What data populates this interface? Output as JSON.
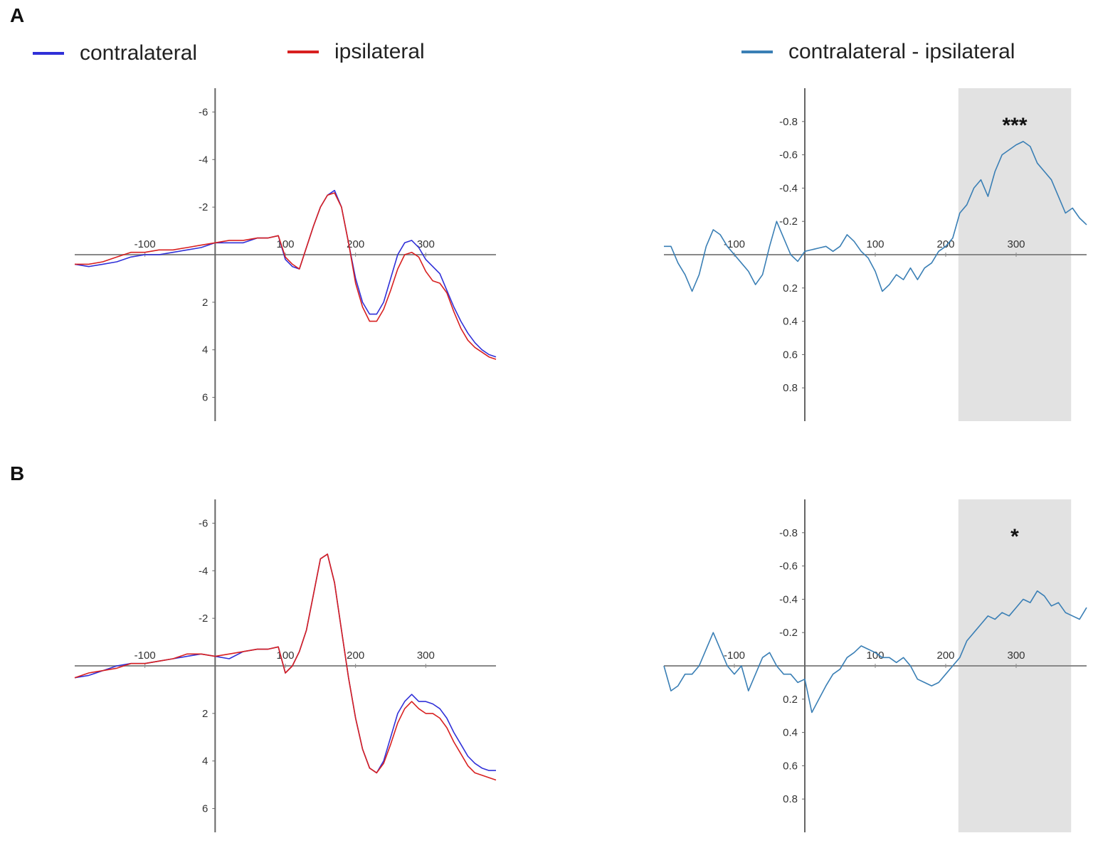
{
  "panels": {
    "a_label": "A",
    "b_label": "B"
  },
  "legend": {
    "items": [
      {
        "label": "contralateral",
        "color": "#3030d8"
      },
      {
        "label": "ipsilateral",
        "color": "#d82020"
      },
      {
        "label": "contralateral - ipsilateral",
        "color": "#3a7fb5"
      }
    ]
  },
  "chart_data": [
    {
      "panel": "A",
      "type": "line",
      "x_ticks": [
        -100,
        100,
        200,
        300
      ],
      "y_ticks": [
        -6,
        -4,
        -2,
        2,
        4,
        6
      ],
      "xlim": [
        -200,
        400
      ],
      "ylim": [
        -7,
        7
      ],
      "y_inverted": true,
      "series": [
        {
          "name": "contralateral",
          "color": "#3030d8",
          "x": [
            -200,
            -180,
            -160,
            -140,
            -120,
            -100,
            -80,
            -60,
            -40,
            -20,
            0,
            20,
            40,
            60,
            75,
            90,
            100,
            110,
            120,
            130,
            140,
            150,
            160,
            170,
            180,
            190,
            200,
            210,
            220,
            230,
            240,
            250,
            260,
            270,
            280,
            290,
            300,
            310,
            320,
            330,
            340,
            350,
            360,
            370,
            380,
            390,
            400
          ],
          "y": [
            0.4,
            0.5,
            0.4,
            0.3,
            0.1,
            0,
            0,
            -0.1,
            -0.2,
            -0.3,
            -0.5,
            -0.5,
            -0.5,
            -0.7,
            -0.7,
            -0.8,
            0.2,
            0.5,
            0.6,
            -0.3,
            -1.2,
            -2,
            -2.5,
            -2.7,
            -2,
            -0.5,
            1,
            2,
            2.5,
            2.5,
            2,
            1,
            0,
            -0.5,
            -0.6,
            -0.3,
            0.2,
            0.5,
            0.8,
            1.5,
            2.2,
            2.8,
            3.3,
            3.7,
            4,
            4.2,
            4.3
          ]
        },
        {
          "name": "ipsilateral",
          "color": "#d82020",
          "x": [
            -200,
            -180,
            -160,
            -140,
            -120,
            -100,
            -80,
            -60,
            -40,
            -20,
            0,
            20,
            40,
            60,
            75,
            90,
            100,
            110,
            120,
            130,
            140,
            150,
            160,
            170,
            180,
            190,
            200,
            210,
            220,
            230,
            240,
            250,
            260,
            270,
            280,
            290,
            300,
            310,
            320,
            330,
            340,
            350,
            360,
            370,
            380,
            390,
            400
          ],
          "y": [
            0.4,
            0.4,
            0.3,
            0.1,
            -0.1,
            -0.1,
            -0.2,
            -0.2,
            -0.3,
            -0.4,
            -0.5,
            -0.6,
            -0.6,
            -0.7,
            -0.7,
            -0.8,
            0.1,
            0.4,
            0.6,
            -0.3,
            -1.2,
            -2,
            -2.5,
            -2.6,
            -2,
            -0.5,
            1.2,
            2.2,
            2.8,
            2.8,
            2.3,
            1.5,
            0.6,
            0,
            -0.1,
            0.1,
            0.7,
            1.1,
            1.2,
            1.6,
            2.4,
            3.1,
            3.6,
            3.9,
            4.1,
            4.3,
            4.4
          ]
        }
      ]
    },
    {
      "panel": "A",
      "type": "line",
      "x_ticks": [
        -100,
        100,
        200,
        300
      ],
      "y_ticks": [
        -0.8,
        -0.6,
        -0.4,
        -0.2,
        0.2,
        0.4,
        0.6,
        0.8
      ],
      "xlim": [
        -200,
        400
      ],
      "ylim": [
        -1,
        1
      ],
      "y_inverted": true,
      "significance_window": [
        218,
        378
      ],
      "significance_label": "***",
      "series": [
        {
          "name": "contralateral - ipsilateral",
          "color": "#3a7fb5",
          "x": [
            -200,
            -190,
            -180,
            -170,
            -160,
            -150,
            -140,
            -130,
            -120,
            -110,
            -100,
            -90,
            -80,
            -70,
            -60,
            -50,
            -40,
            -30,
            -20,
            -10,
            0,
            10,
            20,
            30,
            40,
            50,
            60,
            70,
            80,
            90,
            100,
            110,
            120,
            130,
            140,
            150,
            160,
            170,
            180,
            190,
            200,
            210,
            220,
            230,
            240,
            250,
            260,
            270,
            280,
            290,
            300,
            310,
            320,
            330,
            340,
            350,
            360,
            370,
            380,
            390,
            400
          ],
          "y": [
            -0.05,
            -0.05,
            0.05,
            0.12,
            0.22,
            0.12,
            -0.05,
            -0.15,
            -0.12,
            -0.05,
            0,
            0.05,
            0.1,
            0.18,
            0.12,
            -0.05,
            -0.2,
            -0.1,
            0,
            0.04,
            -0.02,
            -0.03,
            -0.04,
            -0.05,
            -0.02,
            -0.05,
            -0.12,
            -0.08,
            -0.02,
            0.02,
            0.1,
            0.22,
            0.18,
            0.12,
            0.15,
            0.08,
            0.15,
            0.08,
            0.05,
            -0.02,
            -0.05,
            -0.1,
            -0.25,
            -0.3,
            -0.4,
            -0.45,
            -0.35,
            -0.5,
            -0.6,
            -0.63,
            -0.66,
            -0.68,
            -0.65,
            -0.55,
            -0.5,
            -0.45,
            -0.35,
            -0.25,
            -0.28,
            -0.22,
            -0.18
          ]
        }
      ]
    },
    {
      "panel": "B",
      "type": "line",
      "x_ticks": [
        -100,
        100,
        200,
        300
      ],
      "y_ticks": [
        -6,
        -4,
        -2,
        2,
        4,
        6
      ],
      "xlim": [
        -200,
        400
      ],
      "ylim": [
        -7,
        7
      ],
      "y_inverted": true,
      "series": [
        {
          "name": "contralateral",
          "color": "#3030d8",
          "x": [
            -200,
            -180,
            -160,
            -140,
            -120,
            -100,
            -80,
            -60,
            -40,
            -20,
            0,
            20,
            40,
            60,
            75,
            90,
            100,
            110,
            120,
            130,
            140,
            150,
            160,
            170,
            180,
            190,
            200,
            210,
            220,
            230,
            240,
            250,
            260,
            270,
            280,
            290,
            300,
            310,
            320,
            330,
            340,
            350,
            360,
            370,
            380,
            390,
            400
          ],
          "y": [
            0.5,
            0.4,
            0.2,
            0,
            -0.1,
            -0.1,
            -0.2,
            -0.3,
            -0.4,
            -0.5,
            -0.4,
            -0.3,
            -0.6,
            -0.7,
            -0.7,
            -0.8,
            0.3,
            0,
            -0.6,
            -1.5,
            -3,
            -4.5,
            -4.7,
            -3.5,
            -1.5,
            0.5,
            2.2,
            3.5,
            4.3,
            4.5,
            4,
            3,
            2,
            1.5,
            1.2,
            1.5,
            1.5,
            1.6,
            1.8,
            2.2,
            2.8,
            3.3,
            3.8,
            4.1,
            4.3,
            4.4,
            4.4
          ]
        },
        {
          "name": "ipsilateral",
          "color": "#d82020",
          "x": [
            -200,
            -180,
            -160,
            -140,
            -120,
            -100,
            -80,
            -60,
            -40,
            -20,
            0,
            20,
            40,
            60,
            75,
            90,
            100,
            110,
            120,
            130,
            140,
            150,
            160,
            170,
            180,
            190,
            200,
            210,
            220,
            230,
            240,
            250,
            260,
            270,
            280,
            290,
            300,
            310,
            320,
            330,
            340,
            350,
            360,
            370,
            380,
            390,
            400
          ],
          "y": [
            0.5,
            0.3,
            0.2,
            0.1,
            -0.1,
            -0.1,
            -0.2,
            -0.3,
            -0.5,
            -0.5,
            -0.4,
            -0.5,
            -0.6,
            -0.7,
            -0.7,
            -0.8,
            0.3,
            0,
            -0.6,
            -1.5,
            -3,
            -4.5,
            -4.7,
            -3.5,
            -1.5,
            0.5,
            2.2,
            3.5,
            4.3,
            4.5,
            4.1,
            3.3,
            2.4,
            1.8,
            1.5,
            1.8,
            2,
            2,
            2.2,
            2.6,
            3.2,
            3.7,
            4.2,
            4.5,
            4.6,
            4.7,
            4.8
          ]
        }
      ]
    },
    {
      "panel": "B",
      "type": "line",
      "x_ticks": [
        -100,
        100,
        200,
        300
      ],
      "y_ticks": [
        -0.8,
        -0.6,
        -0.4,
        -0.2,
        0.2,
        0.4,
        0.6,
        0.8
      ],
      "xlim": [
        -200,
        400
      ],
      "ylim": [
        -1,
        1
      ],
      "y_inverted": true,
      "significance_window": [
        218,
        378
      ],
      "significance_label": "*",
      "series": [
        {
          "name": "contralateral - ipsilateral",
          "color": "#3a7fb5",
          "x": [
            -200,
            -190,
            -180,
            -170,
            -160,
            -150,
            -140,
            -130,
            -120,
            -110,
            -100,
            -90,
            -80,
            -70,
            -60,
            -50,
            -40,
            -30,
            -20,
            -10,
            0,
            10,
            20,
            30,
            40,
            50,
            60,
            70,
            80,
            90,
            100,
            110,
            120,
            130,
            140,
            150,
            160,
            170,
            180,
            190,
            200,
            210,
            220,
            230,
            240,
            250,
            260,
            270,
            280,
            290,
            300,
            310,
            320,
            330,
            340,
            350,
            360,
            370,
            380,
            390,
            400
          ],
          "y": [
            0,
            0.15,
            0.12,
            0.05,
            0.05,
            0,
            -0.1,
            -0.2,
            -0.1,
            0,
            0.05,
            0,
            0.15,
            0.05,
            -0.05,
            -0.08,
            0,
            0.05,
            0.05,
            0.1,
            0.08,
            0.28,
            0.2,
            0.12,
            0.05,
            0.02,
            -0.05,
            -0.08,
            -0.12,
            -0.1,
            -0.08,
            -0.05,
            -0.05,
            -0.02,
            -0.05,
            0,
            0.08,
            0.1,
            0.12,
            0.1,
            0.05,
            0,
            -0.05,
            -0.15,
            -0.2,
            -0.25,
            -0.3,
            -0.28,
            -0.32,
            -0.3,
            -0.35,
            -0.4,
            -0.38,
            -0.45,
            -0.42,
            -0.36,
            -0.38,
            -0.32,
            -0.3,
            -0.28,
            -0.35
          ]
        }
      ]
    }
  ]
}
